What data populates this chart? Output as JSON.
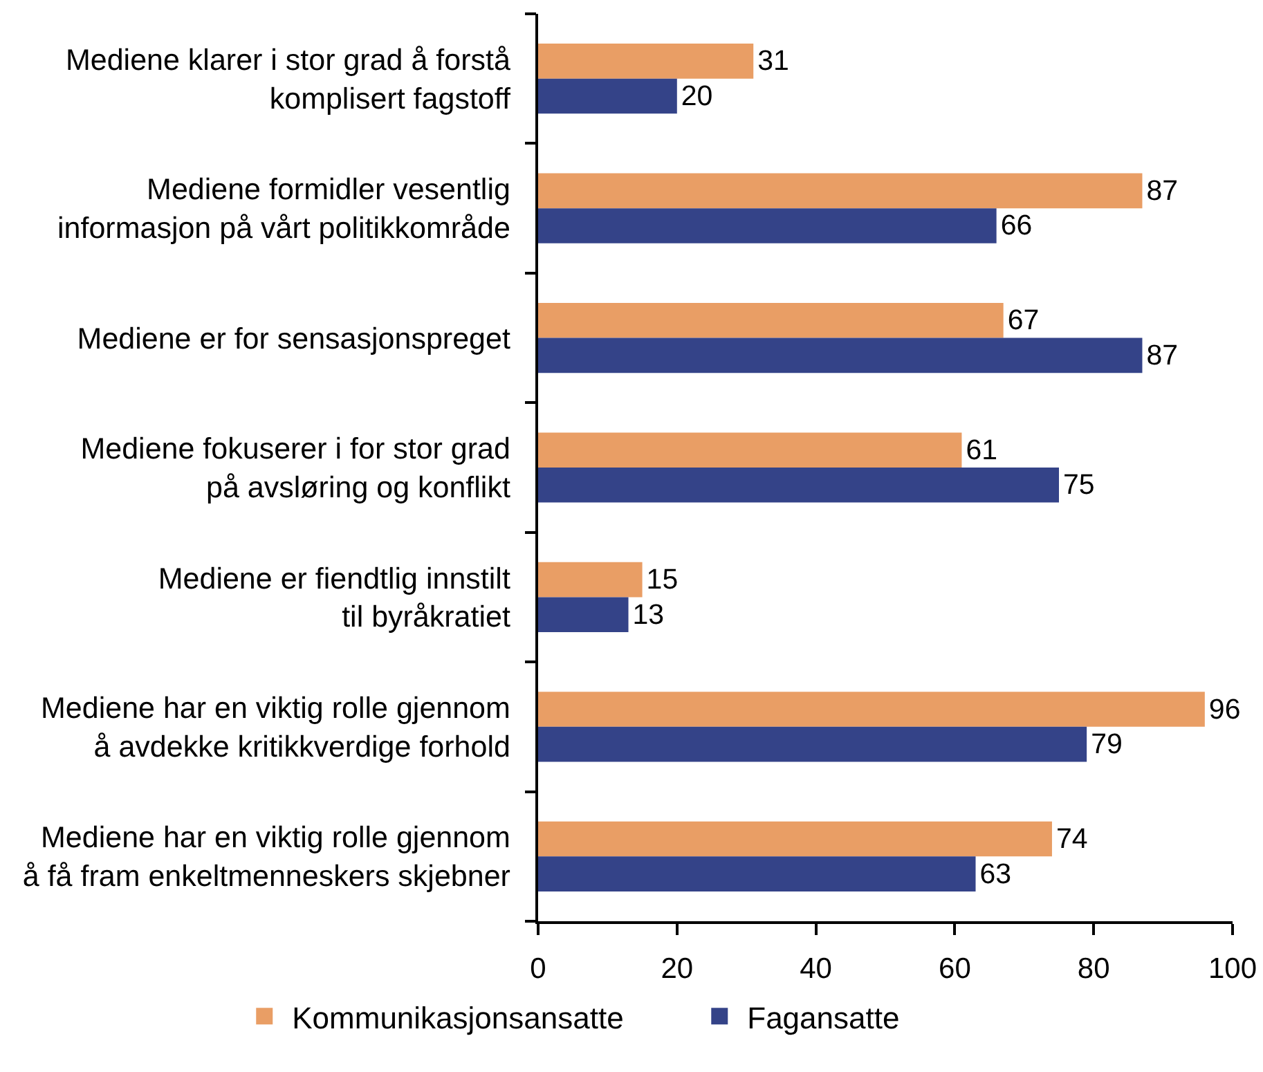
{
  "chart_data": {
    "type": "bar",
    "orientation": "horizontal",
    "categories": [
      "Mediene klarer i stor grad å forstå\nkomplisert fagstoff",
      "Mediene formidler vesentlig\ninformasjon på vårt politikkområde",
      "Mediene er for sensasjonspreget",
      "Mediene fokuserer i for stor grad\npå avsløring og konflikt",
      "Mediene er fiendtlig innstilt\ntil byråkratiet",
      "Mediene har en viktig rolle gjennom\nå avdekke kritikkverdige forhold",
      "Mediene har en viktig rolle gjennom\nå få fram enkeltmenneskers skjebner"
    ],
    "series": [
      {
        "name": "Kommunikasjonsansatte",
        "color": "#e99e65",
        "values": [
          31,
          87,
          67,
          61,
          15,
          96,
          74
        ]
      },
      {
        "name": "Fagansatte",
        "color": "#344388",
        "values": [
          20,
          66,
          87,
          75,
          13,
          79,
          63
        ]
      }
    ],
    "xlim": [
      0,
      100
    ],
    "xticks": [
      0,
      20,
      40,
      60,
      80,
      100
    ],
    "data_labels": true,
    "grid": false,
    "legend": "bottom"
  }
}
